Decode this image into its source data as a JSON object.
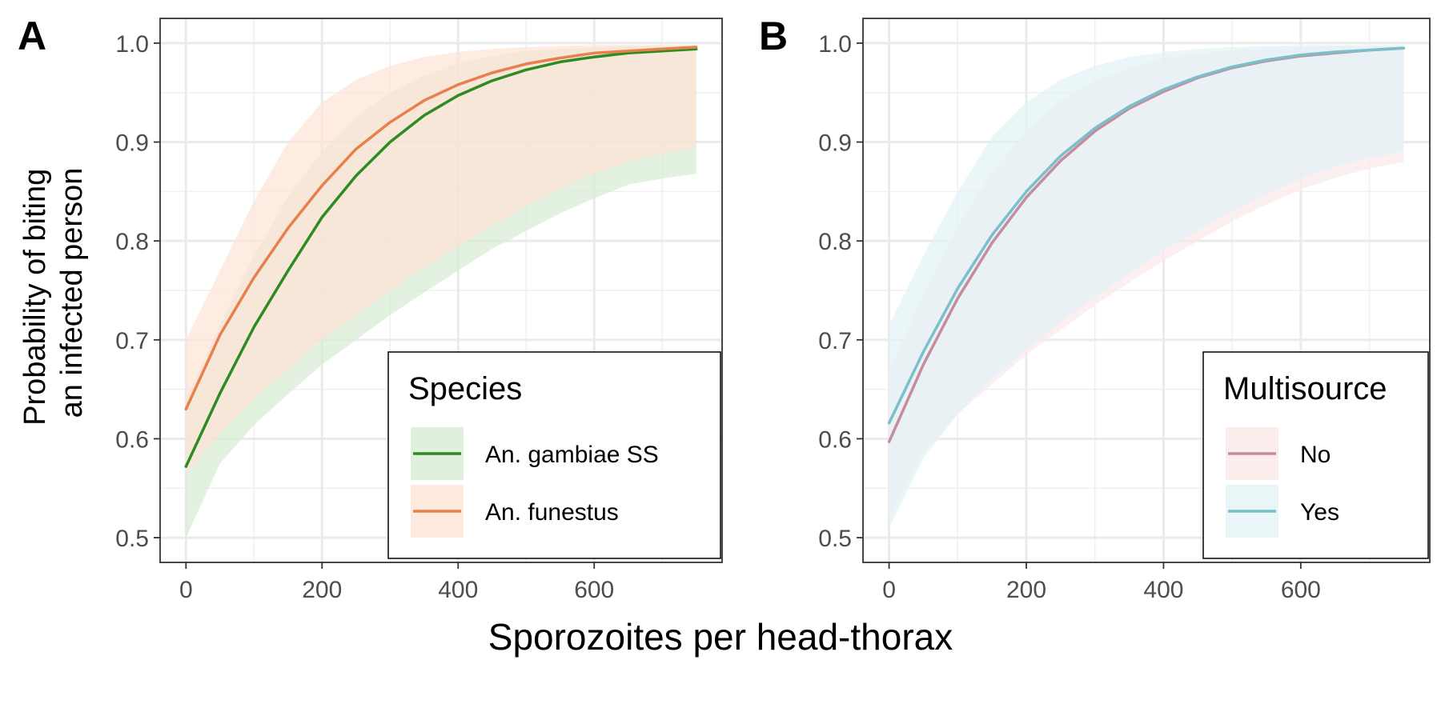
{
  "x_axis_title": "Sporozoites per head-thorax",
  "y_axis_title_lines": [
    "Probability of biting",
    "an infected person"
  ],
  "chart_data": [
    {
      "panel": "A",
      "type": "line",
      "xlim": [
        -38,
        788
      ],
      "ylim": [
        0.475,
        1.025
      ],
      "x_ticks": [
        0,
        200,
        400,
        600
      ],
      "y_ticks": [
        0.5,
        0.6,
        0.7,
        0.8,
        0.9,
        1.0
      ],
      "y_tick_labels": [
        "0.5",
        "0.6",
        "0.7",
        "0.8",
        "0.9",
        "1.0"
      ],
      "grid": true,
      "legend": {
        "title": "Species",
        "position": "bottom-right"
      },
      "x": [
        0,
        50,
        100,
        150,
        200,
        250,
        300,
        350,
        400,
        450,
        500,
        550,
        600,
        650,
        700,
        750
      ],
      "series": [
        {
          "name": "An. gambiae SS",
          "color": "#2e8b22",
          "fill": "#d7ecd3",
          "values": [
            0.572,
            0.646,
            0.713,
            0.77,
            0.824,
            0.866,
            0.9,
            0.927,
            0.947,
            0.962,
            0.973,
            0.981,
            0.986,
            0.99,
            0.992,
            0.994
          ],
          "lower": [
            0.5,
            0.575,
            0.614,
            0.645,
            0.675,
            0.7,
            0.725,
            0.748,
            0.77,
            0.792,
            0.81,
            0.828,
            0.843,
            0.857,
            0.863,
            0.868
          ],
          "upper": [
            0.64,
            0.715,
            0.785,
            0.845,
            0.89,
            0.925,
            0.95,
            0.967,
            0.98,
            0.987,
            0.992,
            0.994,
            0.996,
            0.997,
            0.997,
            0.997
          ]
        },
        {
          "name": "An. funestus",
          "color": "#e8804d",
          "fill": "#fde3d6",
          "values": [
            0.63,
            0.705,
            0.763,
            0.813,
            0.856,
            0.893,
            0.92,
            0.942,
            0.958,
            0.97,
            0.979,
            0.985,
            0.99,
            0.992,
            0.994,
            0.996
          ],
          "lower": [
            0.565,
            0.605,
            0.64,
            0.67,
            0.7,
            0.725,
            0.75,
            0.773,
            0.795,
            0.815,
            0.835,
            0.853,
            0.868,
            0.88,
            0.888,
            0.895
          ],
          "upper": [
            0.7,
            0.77,
            0.84,
            0.9,
            0.94,
            0.963,
            0.977,
            0.986,
            0.991,
            0.994,
            0.996,
            0.997,
            0.998,
            0.998,
            0.998,
            0.998
          ]
        }
      ]
    },
    {
      "panel": "B",
      "type": "line",
      "xlim": [
        -38,
        788
      ],
      "ylim": [
        0.475,
        1.025
      ],
      "x_ticks": [
        0,
        200,
        400,
        600
      ],
      "y_ticks": [
        0.5,
        0.6,
        0.7,
        0.8,
        0.9,
        1.0
      ],
      "y_tick_labels": [
        "0.5",
        "0.6",
        "0.7",
        "0.8",
        "0.9",
        "1.0"
      ],
      "grid": true,
      "legend": {
        "title": "Multisource",
        "position": "bottom-right"
      },
      "x": [
        0,
        50,
        100,
        150,
        200,
        250,
        300,
        350,
        400,
        450,
        500,
        550,
        600,
        650,
        700,
        750
      ],
      "series": [
        {
          "name": "No",
          "color": "#c48c9c",
          "fill": "#fbe8e9",
          "values": [
            0.597,
            0.675,
            0.742,
            0.798,
            0.844,
            0.881,
            0.911,
            0.934,
            0.951,
            0.965,
            0.975,
            0.982,
            0.987,
            0.99,
            0.993,
            0.995
          ],
          "lower": [
            0.52,
            0.585,
            0.625,
            0.655,
            0.685,
            0.71,
            0.735,
            0.758,
            0.78,
            0.8,
            0.82,
            0.837,
            0.852,
            0.864,
            0.873,
            0.88
          ],
          "upper": [
            0.67,
            0.745,
            0.815,
            0.87,
            0.91,
            0.942,
            0.962,
            0.975,
            0.984,
            0.99,
            0.993,
            0.995,
            0.996,
            0.997,
            0.997,
            0.997
          ]
        },
        {
          "name": "Yes",
          "color": "#7bbfca",
          "fill": "#e3f2f5",
          "values": [
            0.616,
            0.688,
            0.752,
            0.806,
            0.85,
            0.886,
            0.914,
            0.936,
            0.953,
            0.966,
            0.976,
            0.983,
            0.988,
            0.991,
            0.993,
            0.995
          ],
          "lower": [
            0.51,
            0.58,
            0.625,
            0.66,
            0.69,
            0.718,
            0.743,
            0.767,
            0.79,
            0.81,
            0.83,
            0.848,
            0.863,
            0.875,
            0.884,
            0.89
          ],
          "upper": [
            0.715,
            0.785,
            0.85,
            0.905,
            0.94,
            0.963,
            0.977,
            0.986,
            0.991,
            0.994,
            0.996,
            0.997,
            0.998,
            0.998,
            0.998,
            0.998
          ]
        }
      ]
    }
  ]
}
